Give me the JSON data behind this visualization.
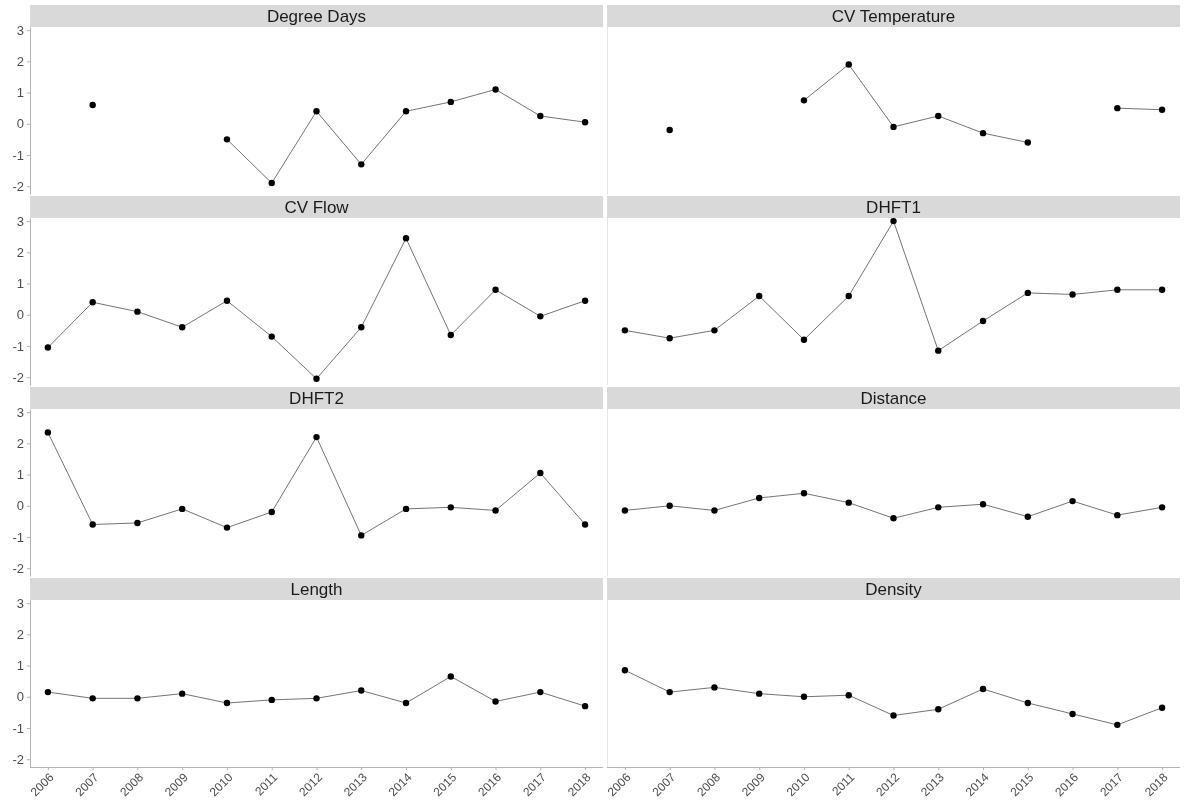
{
  "chart_data": [
    {
      "type": "line",
      "title": "Degree Days",
      "categories": [
        "2006",
        "2007",
        "2008",
        "2009",
        "2010",
        "2011",
        "2012",
        "2013",
        "2014",
        "2015",
        "2016",
        "2017",
        "2018"
      ],
      "series": [
        {
          "color": "#000000",
          "values": [
            null,
            0.6,
            null,
            null,
            -0.5,
            -1.9,
            0.4,
            -1.3,
            0.4,
            0.7,
            1.1,
            0.25,
            0.05
          ]
        }
      ],
      "ylim": [
        -2.25,
        3.1
      ],
      "yticks": [
        -2,
        -1,
        0,
        1,
        2,
        3
      ],
      "tick_labels": "y",
      "marker": "circle",
      "grid": false
    },
    {
      "type": "line",
      "title": "CV Temperature",
      "categories": [
        "2006",
        "2007",
        "2008",
        "2009",
        "2010",
        "2011",
        "2012",
        "2013",
        "2014",
        "2015",
        "2016",
        "2017",
        "2018"
      ],
      "series": [
        {
          "color": "#000000",
          "values": [
            null,
            -0.2,
            null,
            null,
            0.75,
            1.9,
            -0.1,
            0.25,
            -0.3,
            -0.6,
            null,
            0.5,
            0.45
          ]
        }
      ],
      "ylim": [
        -2.25,
        3.1
      ],
      "tick_labels": false,
      "marker": "circle",
      "grid": false
    },
    {
      "type": "line",
      "title": "CV Flow",
      "categories": [
        "2006",
        "2007",
        "2008",
        "2009",
        "2010",
        "2011",
        "2012",
        "2013",
        "2014",
        "2015",
        "2016",
        "2017",
        "2018"
      ],
      "series": [
        {
          "color": "#000000",
          "values": [
            -1.05,
            0.4,
            0.1,
            -0.4,
            0.45,
            -0.7,
            -2.05,
            -0.4,
            2.45,
            -0.65,
            0.8,
            -0.05,
            0.45
          ]
        }
      ],
      "ylim": [
        -2.25,
        3.1
      ],
      "yticks": [
        -2,
        -1,
        0,
        1,
        2,
        3
      ],
      "tick_labels": "y",
      "marker": "circle",
      "grid": false
    },
    {
      "type": "line",
      "title": "DHFT1",
      "categories": [
        "2006",
        "2007",
        "2008",
        "2009",
        "2010",
        "2011",
        "2012",
        "2013",
        "2014",
        "2015",
        "2016",
        "2017",
        "2018"
      ],
      "series": [
        {
          "color": "#000000",
          "values": [
            -0.5,
            -0.75,
            -0.5,
            0.6,
            -0.8,
            0.6,
            3.0,
            -1.15,
            -0.2,
            0.7,
            0.65,
            0.8,
            0.8
          ]
        }
      ],
      "ylim": [
        -2.25,
        3.1
      ],
      "tick_labels": false,
      "marker": "circle",
      "grid": false
    },
    {
      "type": "line",
      "title": "DHFT2",
      "categories": [
        "2006",
        "2007",
        "2008",
        "2009",
        "2010",
        "2011",
        "2012",
        "2013",
        "2014",
        "2015",
        "2016",
        "2017",
        "2018"
      ],
      "series": [
        {
          "color": "#000000",
          "values": [
            2.35,
            -0.6,
            -0.55,
            -0.1,
            -0.7,
            -0.2,
            2.2,
            -0.95,
            -0.1,
            -0.05,
            -0.15,
            1.05,
            -0.6
          ]
        }
      ],
      "ylim": [
        -2.25,
        3.1
      ],
      "yticks": [
        -2,
        -1,
        0,
        1,
        2,
        3
      ],
      "tick_labels": "y",
      "marker": "circle",
      "grid": false
    },
    {
      "type": "line",
      "title": "Distance",
      "categories": [
        "2006",
        "2007",
        "2008",
        "2009",
        "2010",
        "2011",
        "2012",
        "2013",
        "2014",
        "2015",
        "2016",
        "2017",
        "2018"
      ],
      "series": [
        {
          "color": "#000000",
          "values": [
            -0.15,
            0,
            -0.15,
            0.25,
            0.4,
            0.1,
            -0.4,
            -0.05,
            0.05,
            -0.35,
            0.15,
            -0.3,
            -0.05
          ]
        }
      ],
      "ylim": [
        -2.25,
        3.1
      ],
      "tick_labels": false,
      "marker": "circle",
      "grid": false
    },
    {
      "type": "line",
      "title": "Length",
      "categories": [
        "2006",
        "2007",
        "2008",
        "2009",
        "2010",
        "2011",
        "2012",
        "2013",
        "2014",
        "2015",
        "2016",
        "2017",
        "2018"
      ],
      "series": [
        {
          "color": "#000000",
          "values": [
            0.15,
            -0.05,
            -0.05,
            0.1,
            -0.2,
            -0.1,
            -0.05,
            0.2,
            -0.2,
            0.65,
            -0.15,
            0.15,
            -0.3
          ]
        }
      ],
      "ylim": [
        -2.25,
        3.1
      ],
      "yticks": [
        -2,
        -1,
        0,
        1,
        2,
        3
      ],
      "marker": "circle",
      "grid": false
    },
    {
      "type": "line",
      "title": "Density",
      "categories": [
        "2006",
        "2007",
        "2008",
        "2009",
        "2010",
        "2011",
        "2012",
        "2013",
        "2014",
        "2015",
        "2016",
        "2017",
        "2018"
      ],
      "series": [
        {
          "color": "#000000",
          "values": [
            0.85,
            0.15,
            0.3,
            0.1,
            0,
            0.05,
            -0.6,
            -0.4,
            0.25,
            -0.2,
            -0.55,
            -0.9,
            -0.35
          ]
        }
      ],
      "ylim": [
        -2.25,
        3.1
      ],
      "tick_labels": "x",
      "marker": "circle",
      "grid": false
    }
  ]
}
